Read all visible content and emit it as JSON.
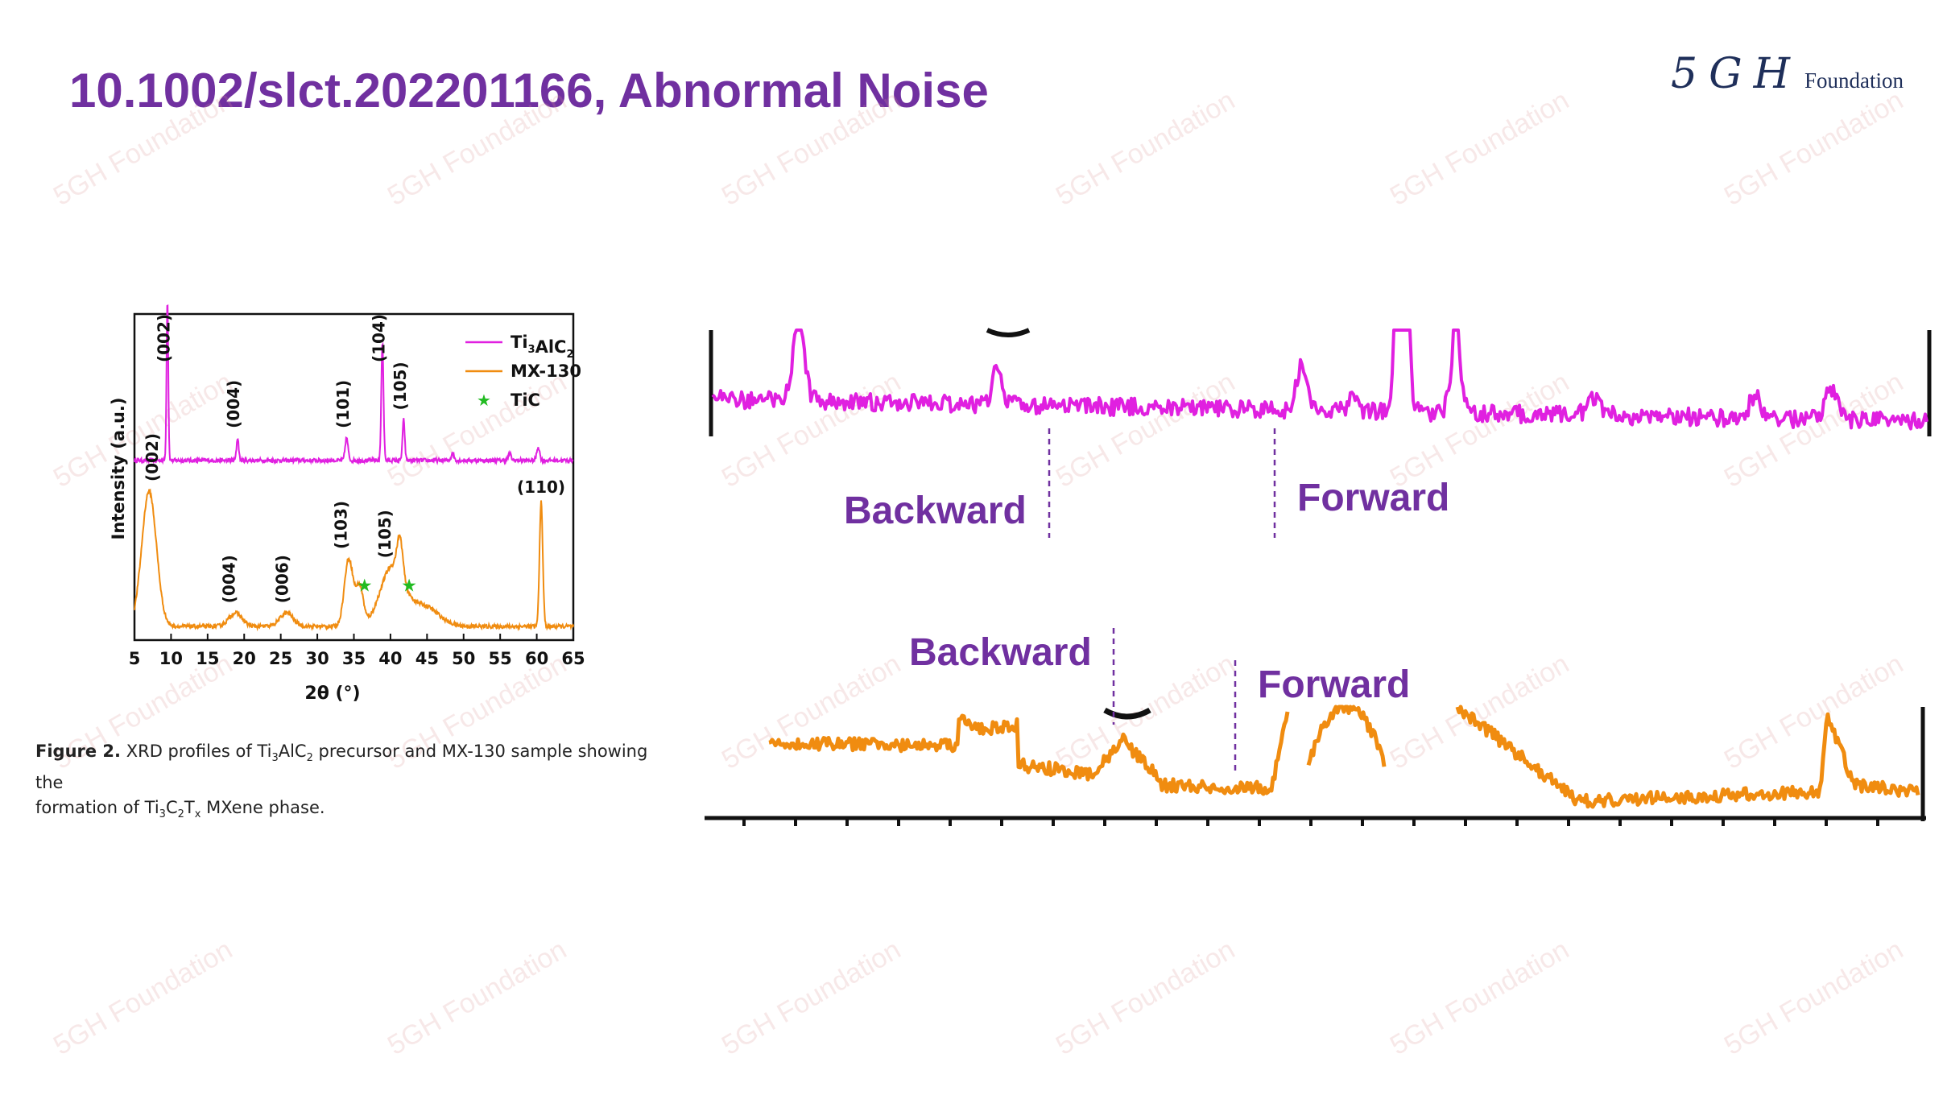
{
  "slide": {
    "title": "10.1002/slct.202201166, Abnormal Noise",
    "logo_script": "5GH",
    "logo_word": "Foundation",
    "watermark_text": "5GH Foundation",
    "accent_color": "#7030a0"
  },
  "caption": {
    "figure_label": "Figure 2.",
    "line1_a": "XRD profiles of Ti",
    "sub_3a": "3",
    "line1_b": "AlC",
    "sub_2a": "2",
    "line1_c": " precursor and MX-130 sample showing the",
    "line2_a": "formation of Ti",
    "sub_3b": "3",
    "line2_b": "C",
    "sub_2b": "2",
    "line2_c": "T",
    "sub_x": "x",
    "line2_d": " MXene phase."
  },
  "chart_data": [
    {
      "type": "line",
      "xlabel": "2θ (°)",
      "ylabel": "Intensity (a.u.)",
      "xlim": [
        5,
        65
      ],
      "xticks": [
        5,
        10,
        15,
        20,
        25,
        30,
        35,
        40,
        45,
        50,
        55,
        60,
        65
      ],
      "legend": {
        "placement": "top-right",
        "entries": [
          {
            "label_main": "Ti",
            "sub1": "3",
            "label_mid": "AlC",
            "sub2": "2",
            "color": "#e020e0",
            "marker": "line"
          },
          {
            "label_main": "MX-130",
            "color": "#f08c10",
            "marker": "line"
          },
          {
            "label_main": "TiC",
            "color": "#22bb22",
            "marker": "star"
          }
        ]
      },
      "series": [
        {
          "name": "Ti3AlC2",
          "color": "#e020e0",
          "baseline": 0.72,
          "peaks": [
            [
              9.5,
              7.2,
              0.12
            ],
            [
              19.1,
              1.0,
              0.15
            ],
            [
              34.0,
              1.0,
              0.2
            ],
            [
              38.9,
              5.3,
              0.15
            ],
            [
              41.8,
              1.8,
              0.15
            ],
            [
              48.5,
              0.3,
              0.2
            ],
            [
              56.3,
              0.3,
              0.2
            ],
            [
              60.2,
              0.6,
              0.2
            ]
          ],
          "peak_labels": [
            {
              "x": 9.8,
              "text": "(002)"
            },
            {
              "x": 19.3,
              "text": "(004)"
            },
            {
              "x": 34.3,
              "text": "(101)"
            },
            {
              "x": 39.2,
              "text": "(104)"
            },
            {
              "x": 42.1,
              "text": "(105)"
            }
          ]
        },
        {
          "name": "MX-130",
          "color": "#f08c10",
          "baseline": 0.0,
          "peaks": [
            [
              7.0,
              6.0,
              1.0
            ],
            [
              18.8,
              0.6,
              0.9
            ],
            [
              25.8,
              0.6,
              0.9
            ],
            [
              34.3,
              3.0,
              0.6
            ],
            [
              35.8,
              1.7,
              0.5
            ],
            [
              40.2,
              2.6,
              1.6
            ],
            [
              41.3,
              1.7,
              0.4
            ],
            [
              44.5,
              0.9,
              2.0
            ],
            [
              60.6,
              5.5,
              0.22
            ]
          ],
          "peak_labels": [
            {
              "x": 8.2,
              "text": "(002)"
            },
            {
              "x": 18.7,
              "text": "(004)"
            },
            {
              "x": 26.0,
              "text": "(006)"
            },
            {
              "x": 34.0,
              "text": "(103)"
            },
            {
              "x": 40.0,
              "text": "(105)"
            },
            {
              "x": 60.6,
              "text": "(110)"
            }
          ],
          "markers": [
            {
              "x": 35.8,
              "label": "TiC"
            },
            {
              "x": 41.9,
              "label": "TiC"
            }
          ]
        }
      ]
    },
    {
      "type": "line",
      "description_labels": {
        "top_backward": "Backward",
        "top_forward": "Forward",
        "bottom_backward": "Backward",
        "bottom_forward": "Forward"
      },
      "series": [
        {
          "name": "Ti3AlC2",
          "color": "#e020e0"
        },
        {
          "name": "MX-130",
          "color": "#f08c10"
        }
      ]
    }
  ]
}
